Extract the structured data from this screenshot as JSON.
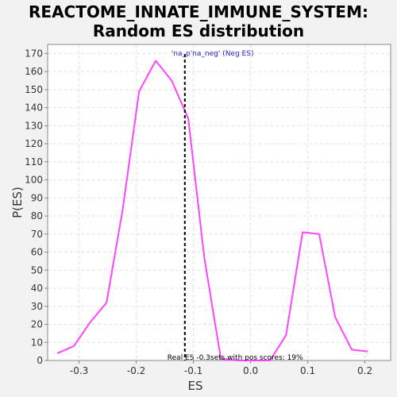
{
  "chart_data": {
    "type": "line",
    "title": "REACTOME_INNATE_IMMUNE_SYSTEM:",
    "subtitle": "Random ES distribution",
    "xlabel": "ES",
    "ylabel": "P(ES)",
    "xlim": [
      -0.355,
      0.245
    ],
    "ylim": [
      0,
      175
    ],
    "xticks": [
      -0.3,
      -0.2,
      -0.1,
      0.0,
      0.1,
      0.2
    ],
    "xtick_labels": [
      "-0.3",
      "-0.2",
      "-0.1",
      "0.0",
      "0.1",
      "0.2"
    ],
    "yticks": [
      0,
      10,
      20,
      30,
      40,
      50,
      60,
      70,
      80,
      90,
      100,
      110,
      120,
      130,
      140,
      150,
      160,
      170
    ],
    "grid": true,
    "series": [
      {
        "color": "#ff44ff",
        "x": [
          -0.338,
          -0.309,
          -0.281,
          -0.252,
          -0.224,
          -0.195,
          -0.166,
          -0.138,
          -0.109,
          -0.081,
          -0.052,
          -0.023,
          0.005,
          0.034,
          0.062,
          0.091,
          0.12,
          0.148,
          0.177,
          0.205
        ],
        "y": [
          4,
          8,
          21,
          32,
          83,
          149,
          166,
          155,
          134,
          57,
          1,
          0,
          0,
          0,
          14,
          71,
          70,
          24,
          6,
          5
        ]
      }
    ],
    "real_es": {
      "x": -0.115,
      "label": "'na_p'na_neg' (Neg ES)",
      "color": "#cc0000"
    },
    "footer_note": "Real ES -0.3sets with pos scores: 19%"
  }
}
